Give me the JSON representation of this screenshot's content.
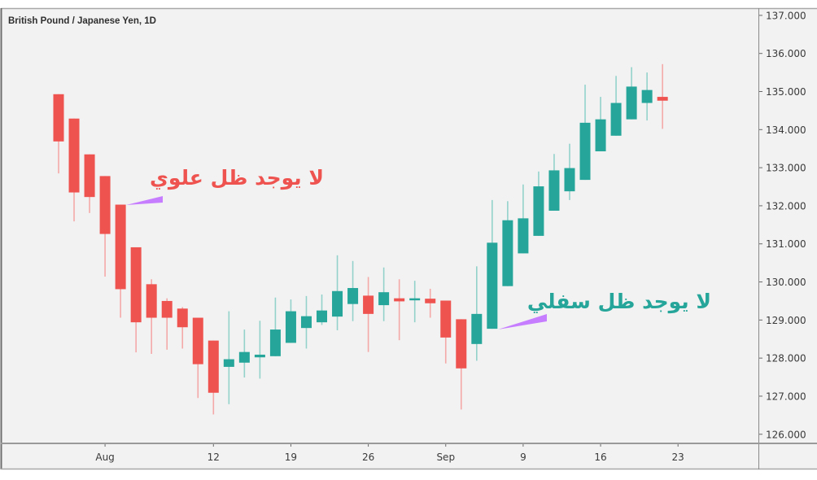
{
  "header": {
    "title": "British Pound / Japanese Yen, 1D"
  },
  "annotations": {
    "upper": {
      "text": "لا يوجد ظل علوي",
      "color": "#ef5350",
      "pointer_color": "#c77dff",
      "target_date": "Aug 2"
    },
    "lower": {
      "text": "لا يوجد ظل سفلي",
      "color": "#26a69a",
      "pointer_color": "#c77dff",
      "target_date": "Sep 5"
    }
  },
  "colors": {
    "background": "#f2f2f2",
    "up_body": "#26a69a",
    "up_wick": "#93d2cb",
    "down_body": "#ef5350",
    "down_wick": "#f4a9a8",
    "frame": "#9a9a9a",
    "axis_text": "#3a3a3a"
  },
  "chart_data": {
    "type": "candlestick",
    "title": "British Pound / Japanese Yen, 1D",
    "xlabel": "",
    "ylabel": "",
    "ylim": [
      125.76,
      137.19
    ],
    "grid": false,
    "legend": null,
    "y_ticks": [
      "137.000",
      "136.000",
      "135.000",
      "134.000",
      "133.000",
      "132.000",
      "131.000",
      "130.000",
      "129.000",
      "128.000",
      "127.000",
      "126.000"
    ],
    "x_ticks": [
      {
        "label": "Aug",
        "index": 3
      },
      {
        "label": "12",
        "index": 10
      },
      {
        "label": "19",
        "index": 15
      },
      {
        "label": "26",
        "index": 20
      },
      {
        "label": "Sep",
        "index": 25
      },
      {
        "label": "9",
        "index": 30
      },
      {
        "label": "16",
        "index": 35
      },
      {
        "label": "23",
        "index": 40
      }
    ],
    "candles": [
      {
        "date": "Jul 29",
        "open": 134.93,
        "high": 134.93,
        "low": 132.85,
        "close": 133.69
      },
      {
        "date": "Jul 30",
        "open": 134.29,
        "high": 134.29,
        "low": 131.59,
        "close": 132.35
      },
      {
        "date": "Jul 31",
        "open": 133.35,
        "high": 133.35,
        "low": 131.81,
        "close": 132.23
      },
      {
        "date": "Aug 1",
        "open": 132.78,
        "high": 132.78,
        "low": 130.14,
        "close": 131.26
      },
      {
        "date": "Aug 2",
        "open": 132.03,
        "high": 132.03,
        "low": 129.06,
        "close": 129.81
      },
      {
        "date": "Aug 5",
        "open": 130.91,
        "high": 130.91,
        "low": 128.15,
        "close": 128.94
      },
      {
        "date": "Aug 6",
        "open": 129.94,
        "high": 130.07,
        "low": 128.11,
        "close": 129.06
      },
      {
        "date": "Aug 7",
        "open": 129.5,
        "high": 129.57,
        "low": 128.22,
        "close": 129.06
      },
      {
        "date": "Aug 8",
        "open": 129.3,
        "high": 129.34,
        "low": 128.25,
        "close": 128.81
      },
      {
        "date": "Aug 9",
        "open": 129.06,
        "high": 129.06,
        "low": 126.95,
        "close": 127.84
      },
      {
        "date": "Aug 12",
        "open": 128.46,
        "high": 128.46,
        "low": 126.52,
        "close": 127.09
      },
      {
        "date": "Aug 13",
        "open": 127.77,
        "high": 129.23,
        "low": 126.79,
        "close": 127.97
      },
      {
        "date": "Aug 14",
        "open": 127.88,
        "high": 128.75,
        "low": 127.49,
        "close": 128.16
      },
      {
        "date": "Aug 15",
        "open": 128.02,
        "high": 128.98,
        "low": 127.46,
        "close": 128.09
      },
      {
        "date": "Aug 16",
        "open": 128.05,
        "high": 129.59,
        "low": 128.05,
        "close": 128.75
      },
      {
        "date": "Aug 19",
        "open": 128.4,
        "high": 129.54,
        "low": 128.4,
        "close": 129.23
      },
      {
        "date": "Aug 20",
        "open": 128.79,
        "high": 129.63,
        "low": 128.25,
        "close": 129.1
      },
      {
        "date": "Aug 21",
        "open": 128.94,
        "high": 129.67,
        "low": 128.87,
        "close": 129.25
      },
      {
        "date": "Aug 22",
        "open": 129.09,
        "high": 130.7,
        "low": 128.73,
        "close": 129.76
      },
      {
        "date": "Aug 23",
        "open": 129.42,
        "high": 130.55,
        "low": 128.97,
        "close": 129.84
      },
      {
        "date": "Aug 26",
        "open": 129.64,
        "high": 130.13,
        "low": 128.16,
        "close": 129.16
      },
      {
        "date": "Aug 27",
        "open": 129.39,
        "high": 130.38,
        "low": 128.97,
        "close": 129.73
      },
      {
        "date": "Aug 28",
        "open": 129.57,
        "high": 130.07,
        "low": 128.47,
        "close": 129.49
      },
      {
        "date": "Aug 29",
        "open": 129.52,
        "high": 130.03,
        "low": 128.94,
        "close": 129.57
      },
      {
        "date": "Aug 30",
        "open": 129.56,
        "high": 129.82,
        "low": 129.06,
        "close": 129.44
      },
      {
        "date": "Sep 2",
        "open": 129.51,
        "high": 129.51,
        "low": 127.86,
        "close": 128.54
      },
      {
        "date": "Sep 3",
        "open": 129.02,
        "high": 129.02,
        "low": 126.65,
        "close": 127.73
      },
      {
        "date": "Sep 4",
        "open": 128.37,
        "high": 130.41,
        "low": 127.93,
        "close": 129.16
      },
      {
        "date": "Sep 5",
        "open": 128.77,
        "high": 132.15,
        "low": 128.77,
        "close": 131.03
      },
      {
        "date": "Sep 6",
        "open": 129.89,
        "high": 132.12,
        "low": 129.89,
        "close": 131.62
      },
      {
        "date": "Sep 9",
        "open": 130.75,
        "high": 132.56,
        "low": 130.75,
        "close": 131.67
      },
      {
        "date": "Sep 10",
        "open": 131.21,
        "high": 132.9,
        "low": 131.21,
        "close": 132.51
      },
      {
        "date": "Sep 11",
        "open": 131.87,
        "high": 133.36,
        "low": 131.87,
        "close": 132.93
      },
      {
        "date": "Sep 12",
        "open": 132.38,
        "high": 133.63,
        "low": 132.15,
        "close": 132.99
      },
      {
        "date": "Sep 13",
        "open": 132.68,
        "high": 135.18,
        "low": 132.68,
        "close": 134.18
      },
      {
        "date": "Sep 16",
        "open": 133.43,
        "high": 134.86,
        "low": 133.43,
        "close": 134.27
      },
      {
        "date": "Sep 17",
        "open": 133.84,
        "high": 135.41,
        "low": 133.84,
        "close": 134.7
      },
      {
        "date": "Sep 18",
        "open": 134.27,
        "high": 135.64,
        "low": 134.27,
        "close": 135.13
      },
      {
        "date": "Sep 19",
        "open": 134.7,
        "high": 135.5,
        "low": 134.24,
        "close": 135.04
      },
      {
        "date": "Sep 20",
        "open": 134.86,
        "high": 135.72,
        "low": 134.02,
        "close": 134.76
      }
    ]
  }
}
